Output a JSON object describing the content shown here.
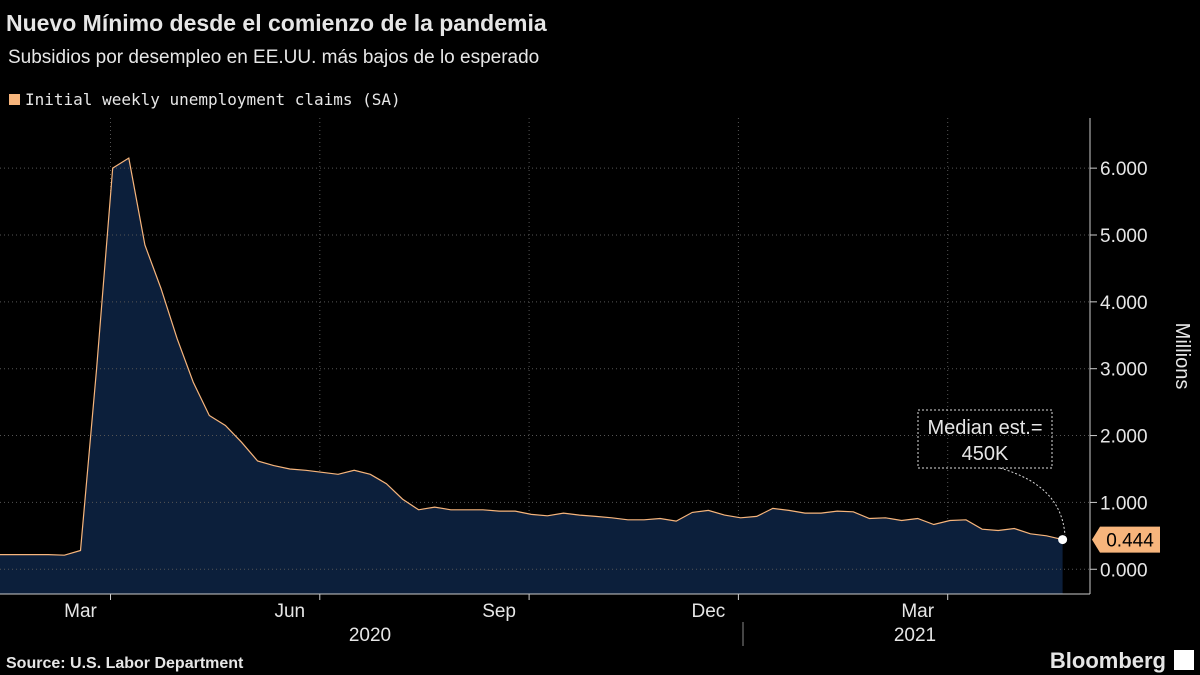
{
  "chart_data": {
    "type": "area",
    "title": "Nuevo Mínimo desde el comienzo de la pandemia",
    "subtitle": "Subsidios por desempleo en EE.UU. más bajos de lo esperado",
    "y_axis_label": "Millions",
    "source": "Source: U.S. Labor Department",
    "brand": "Bloomberg",
    "annotation": [
      "Median est.=",
      "450K"
    ],
    "categories": [
      null,
      null,
      null,
      null,
      null,
      "Mar",
      null,
      null,
      null,
      null,
      null,
      null,
      null,
      null,
      null,
      null,
      null,
      null,
      "Jun",
      null,
      null,
      null,
      null,
      null,
      null,
      null,
      null,
      null,
      null,
      null,
      null,
      "Sep",
      null,
      null,
      null,
      null,
      null,
      null,
      null,
      null,
      null,
      null,
      null,
      null,
      "Dec",
      null,
      null,
      null,
      null,
      null,
      null,
      null,
      null,
      null,
      null,
      null,
      null,
      "Mar",
      null,
      null,
      null,
      null,
      null,
      null,
      null,
      null,
      null
    ],
    "x_groups": [
      "2020",
      "2021"
    ],
    "series": [
      {
        "name": "Initial weekly unemployment claims (SA)",
        "color": "#f7b57c",
        "fill": "#0c1f3b",
        "values": [
          0.22,
          0.22,
          0.22,
          0.22,
          0.21,
          0.28,
          3.0,
          6.0,
          6.15,
          4.85,
          4.2,
          3.45,
          2.8,
          2.3,
          2.15,
          1.9,
          1.62,
          1.55,
          1.5,
          1.48,
          1.45,
          1.42,
          1.48,
          1.42,
          1.28,
          1.05,
          0.89,
          0.93,
          0.89,
          0.89,
          0.89,
          0.87,
          0.87,
          0.82,
          0.8,
          0.84,
          0.81,
          0.79,
          0.77,
          0.74,
          0.74,
          0.76,
          0.72,
          0.85,
          0.88,
          0.81,
          0.77,
          0.79,
          0.91,
          0.88,
          0.84,
          0.84,
          0.87,
          0.86,
          0.76,
          0.77,
          0.73,
          0.76,
          0.67,
          0.73,
          0.74,
          0.6,
          0.58,
          0.61,
          0.53,
          0.5,
          0.444
        ]
      }
    ],
    "ylim": [
      -0.37,
      6.75
    ],
    "yticks": [
      {
        "value": 0,
        "label": "0.000"
      },
      {
        "value": 1,
        "label": "1.000"
      },
      {
        "value": 2,
        "label": "2.000"
      },
      {
        "value": 3,
        "label": "3.000"
      },
      {
        "value": 4,
        "label": "4.000"
      },
      {
        "value": 5,
        "label": "5.000"
      },
      {
        "value": 6,
        "label": "6.000"
      }
    ],
    "grid": true
  }
}
